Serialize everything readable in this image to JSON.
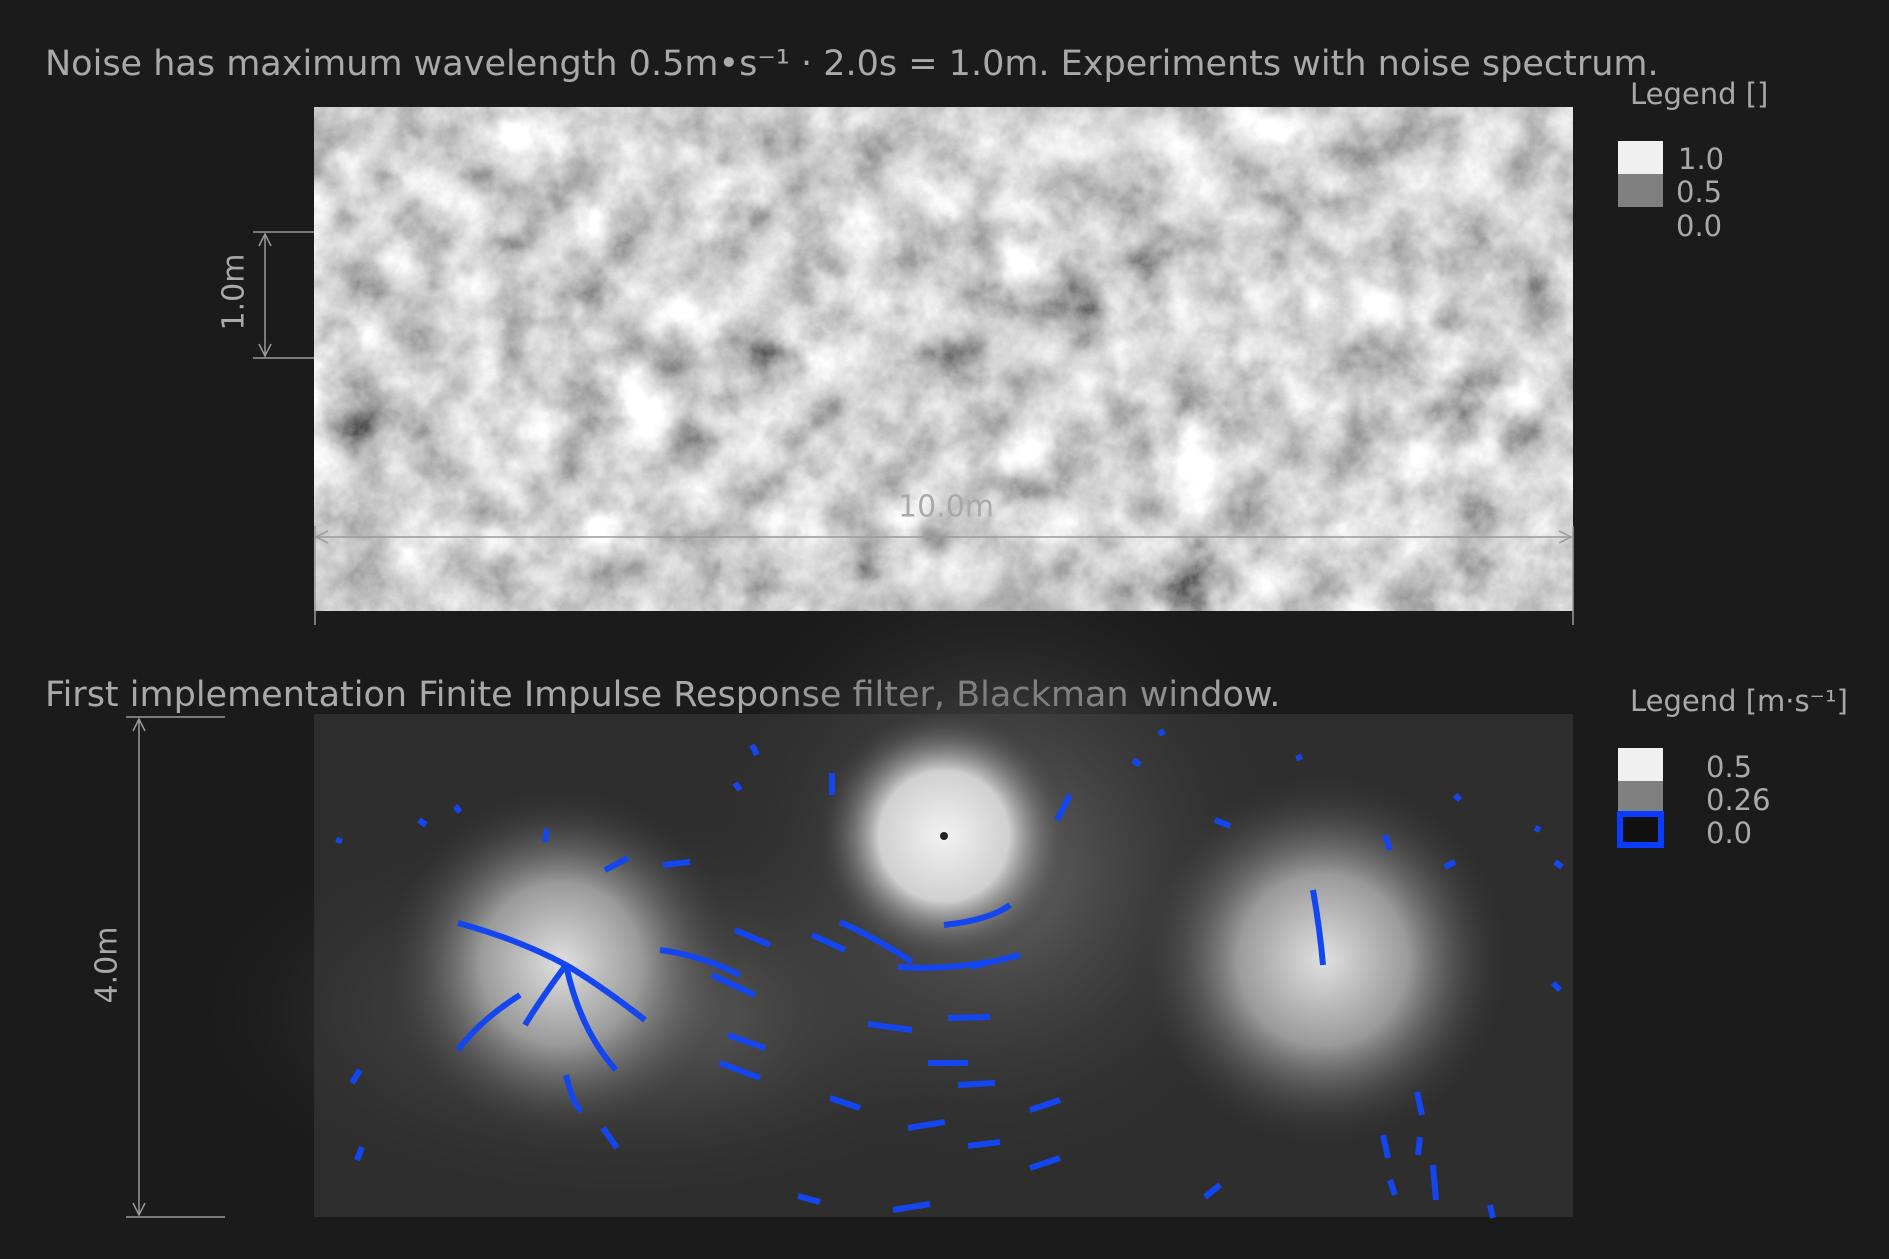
{
  "panels": [
    {
      "title": "Noise has maximum wavelength 0.5m•s⁻¹ · 2.0s = 1.0m. Experiments with noise spectrum.",
      "legend": {
        "title": "Legend []",
        "labels": [
          "1.0",
          "0.5",
          "0.0"
        ]
      },
      "dimensions": [
        "1.0m",
        "10.0m"
      ]
    },
    {
      "title": "First implementation Finite Impulse Response filter, Blackman window.",
      "legend": {
        "title": "Legend [m·s⁻¹]",
        "labels": [
          "0.5",
          "0.26",
          "0.0"
        ]
      },
      "dimensions": [
        "4.0m"
      ]
    }
  ]
}
